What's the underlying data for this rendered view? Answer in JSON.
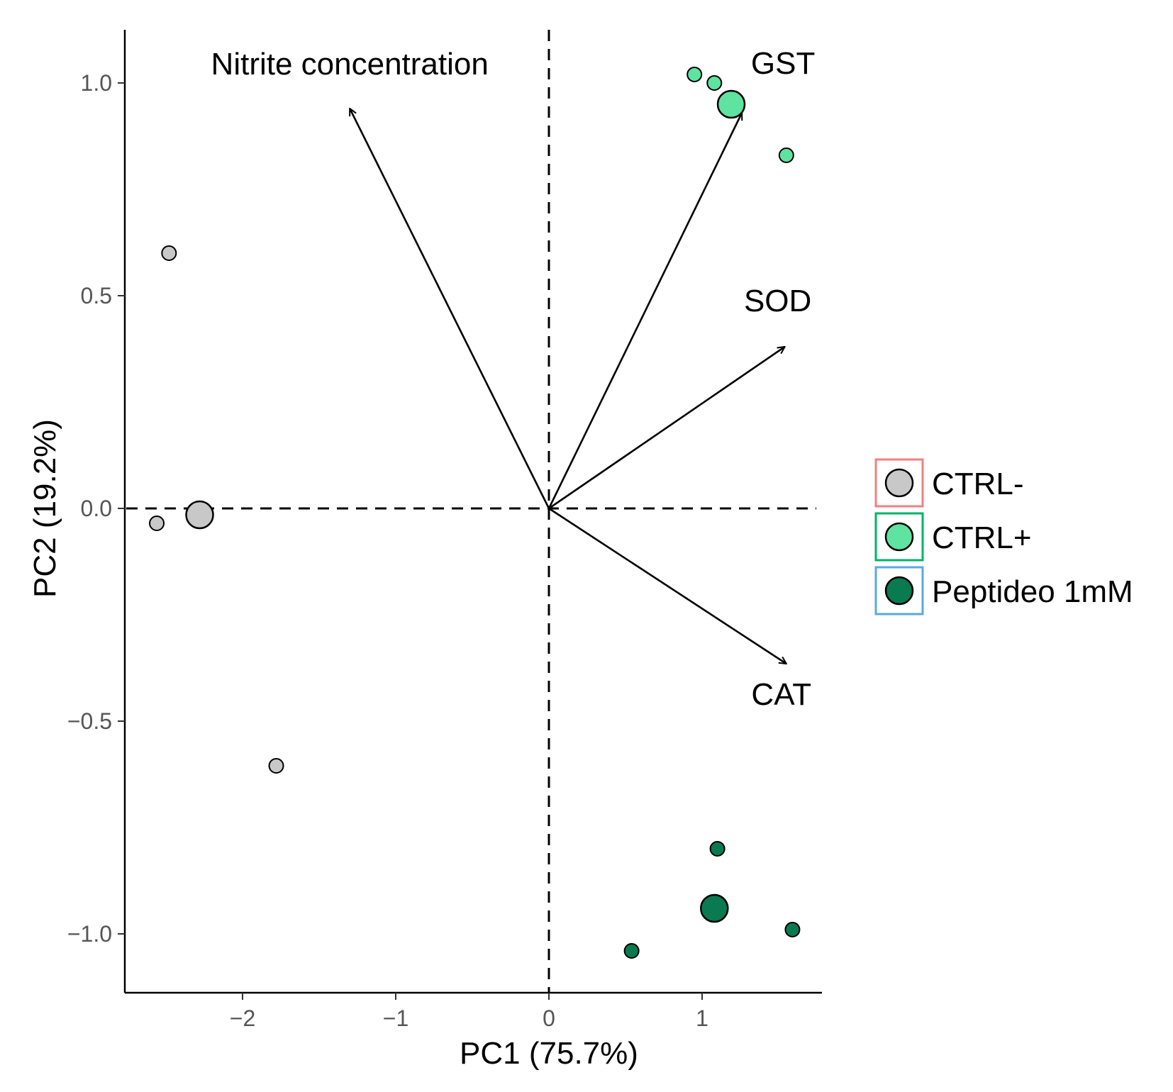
{
  "chart_data": {
    "type": "scatter",
    "subtype": "pca-biplot",
    "title": "",
    "xlabel": "PC1 (75.7%)",
    "ylabel": "PC2 (19.2%)",
    "xlim": [
      -2.75,
      1.8
    ],
    "ylim": [
      -1.14,
      1.13
    ],
    "xticks": [
      {
        "value": -2,
        "label": "−2"
      },
      {
        "value": -1,
        "label": "−1"
      },
      {
        "value": 0,
        "label": "0"
      },
      {
        "value": 1,
        "label": "1"
      }
    ],
    "yticks": [
      {
        "value": 1.0,
        "label": "1.0"
      },
      {
        "value": 0.5,
        "label": "0.5"
      },
      {
        "value": 0.0,
        "label": "0.0"
      },
      {
        "value": -0.5,
        "label": "−0.5"
      },
      {
        "value": -1.0,
        "label": "−1.0"
      }
    ],
    "reference_lines": {
      "x": 0,
      "y": 0,
      "style": "dashed"
    },
    "groups": [
      {
        "name": "CTRL-",
        "fill": "#c8c8c8",
        "legend_border": "#f08080",
        "points": [
          [
            -2.48,
            0.6
          ],
          [
            -2.56,
            -0.035
          ],
          [
            -1.78,
            -0.605
          ]
        ],
        "centroid": [
          -2.28,
          -0.015
        ]
      },
      {
        "name": "CTRL+",
        "fill": "#5ee3a0",
        "legend_border": "#00b36b",
        "points": [
          [
            0.95,
            1.02
          ],
          [
            1.08,
            1.0
          ],
          [
            1.55,
            0.83
          ]
        ],
        "centroid": [
          1.19,
          0.95
        ]
      },
      {
        "name": "Peptideo 1mM",
        "fill": "#0a7a50",
        "legend_border": "#5aa8e6",
        "points": [
          [
            1.1,
            -0.8
          ],
          [
            1.59,
            -0.99
          ],
          [
            0.54,
            -1.04
          ]
        ],
        "centroid": [
          1.08,
          -0.94
        ]
      }
    ],
    "loadings": [
      {
        "name": "Nitrite concentration",
        "x": -1.3,
        "y": 0.94
      },
      {
        "name": "GST",
        "x": 1.26,
        "y": 0.93
      },
      {
        "name": "SOD",
        "x": 1.54,
        "y": 0.38
      },
      {
        "name": "CAT",
        "x": 1.55,
        "y": -0.365
      }
    ],
    "legend": {
      "position": "right"
    },
    "grid": false
  }
}
